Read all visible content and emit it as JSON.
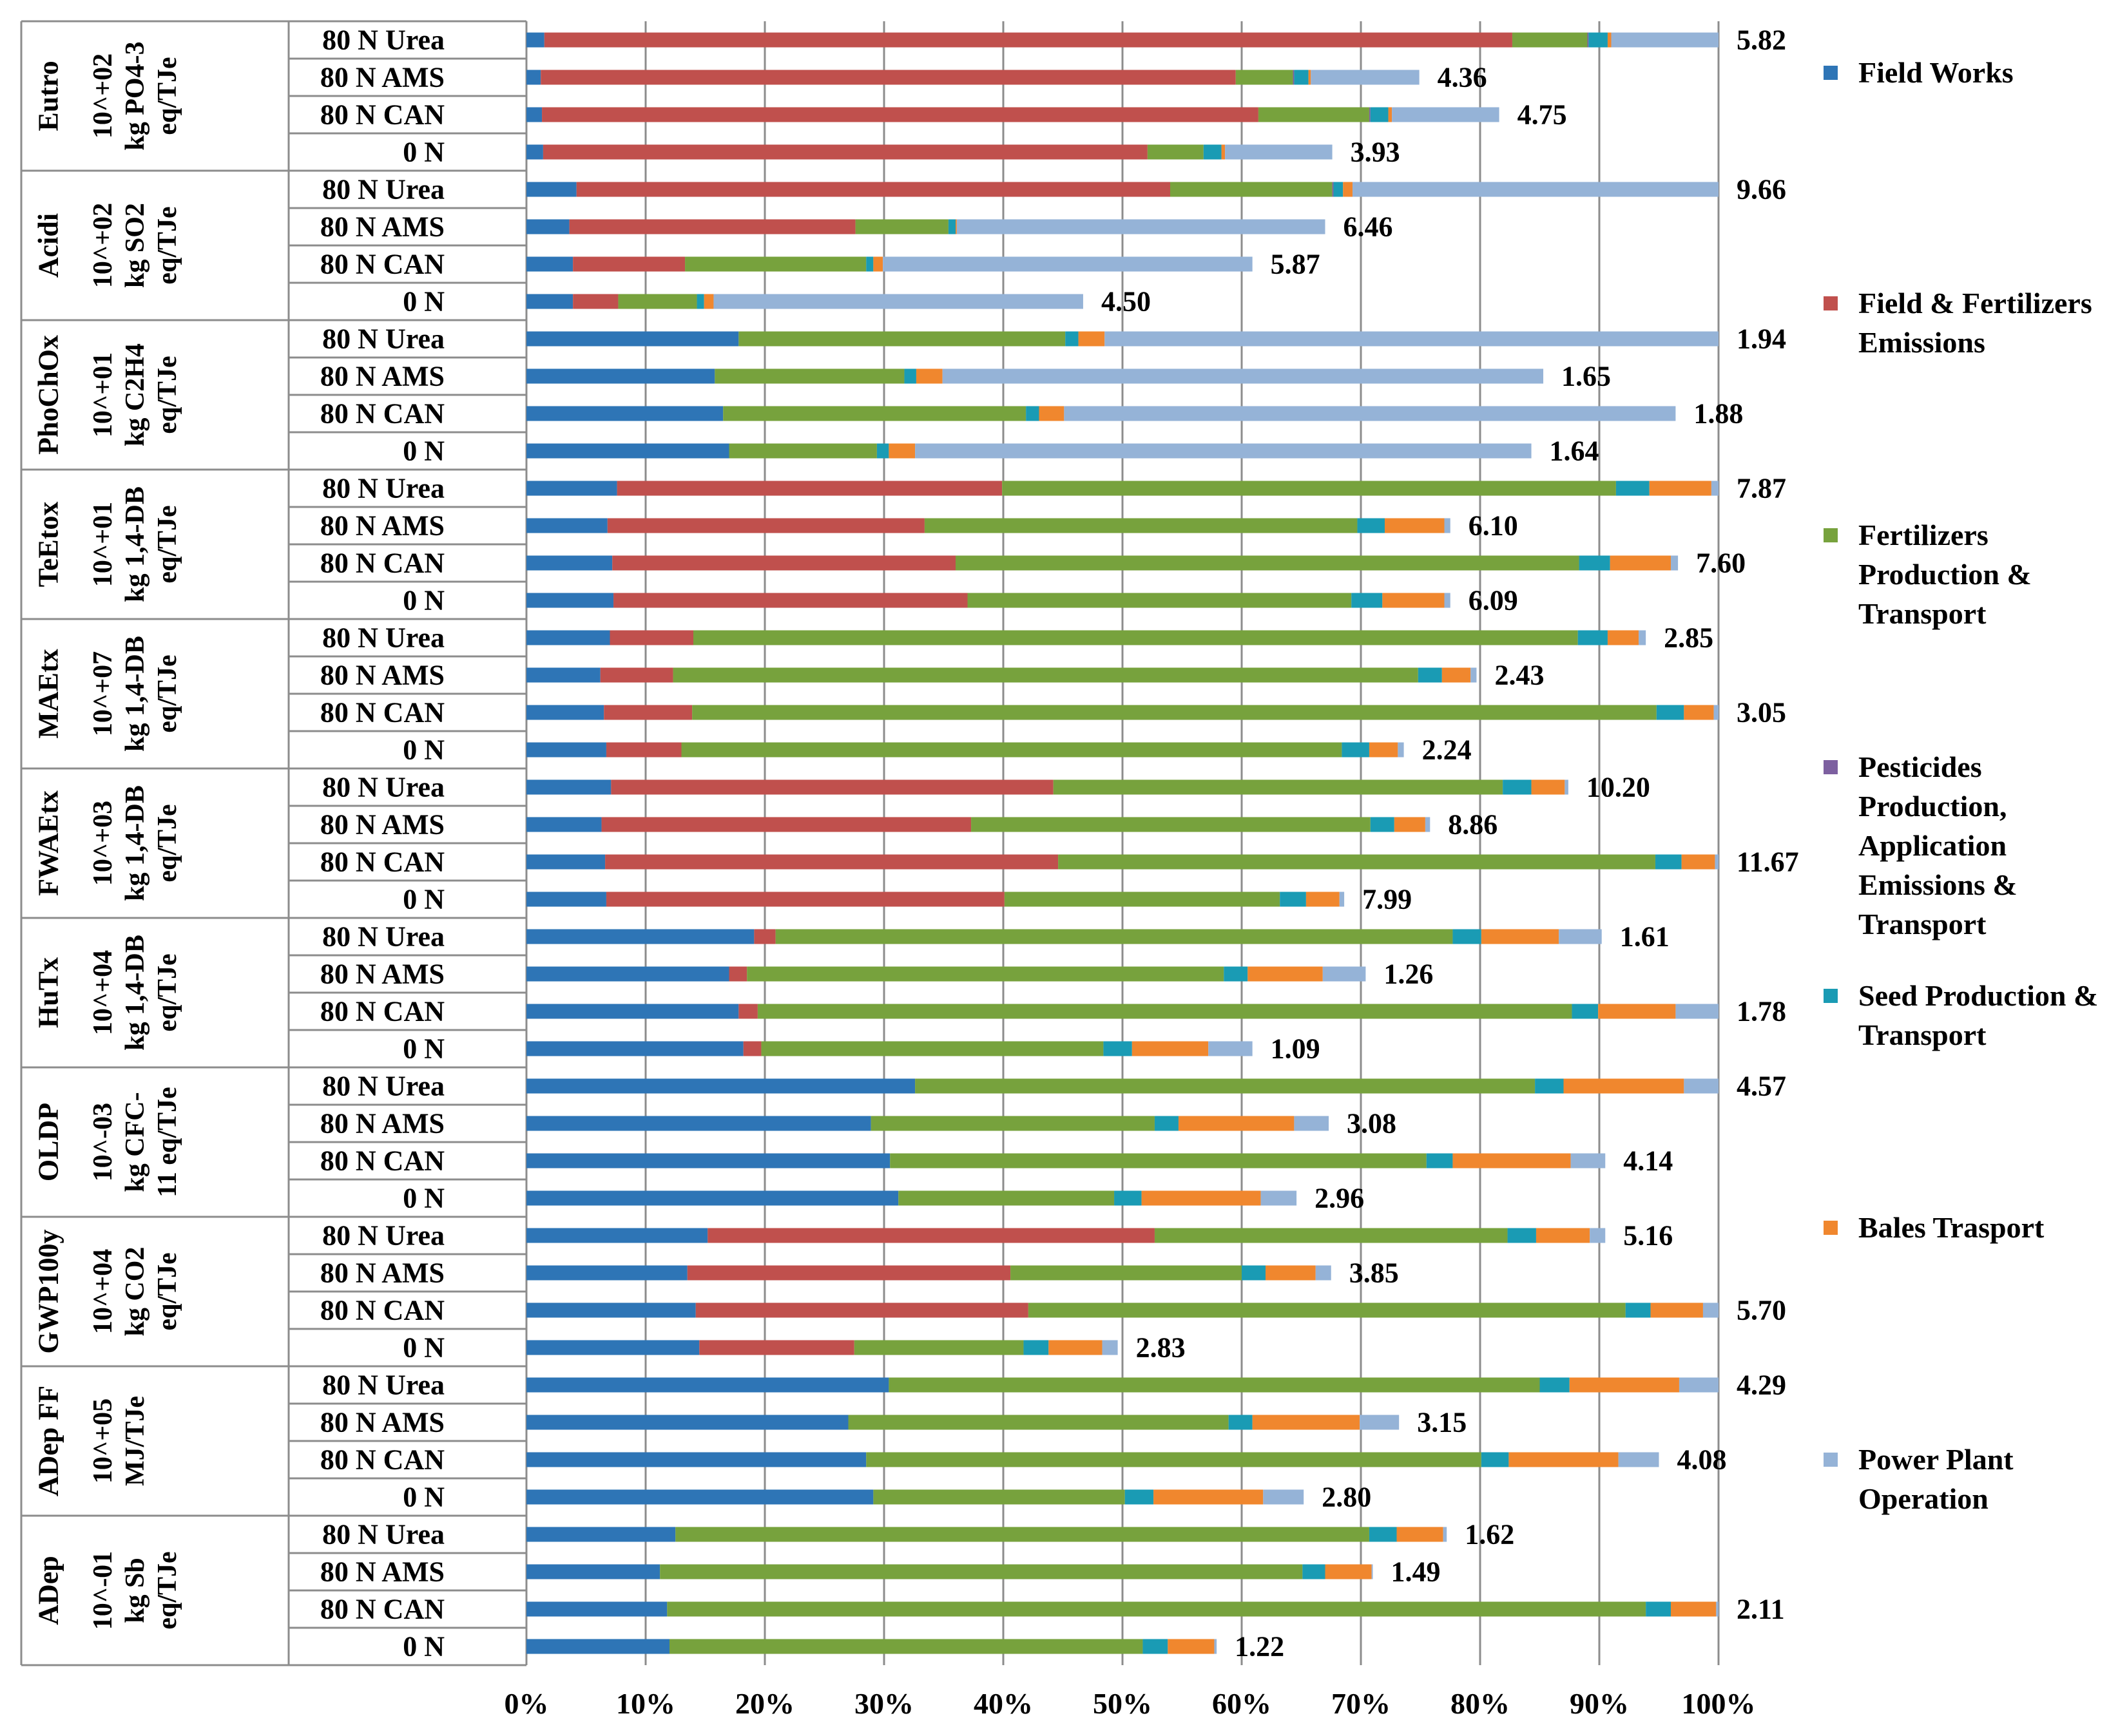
{
  "chart_data": {
    "type": "bar",
    "orientation": "horizontal",
    "stacked": true,
    "title": "",
    "xlabel": "",
    "ylabel": "",
    "xlim": [
      0,
      100
    ],
    "x_tick_labels": [
      "0%",
      "10%",
      "20%",
      "30%",
      "40%",
      "50%",
      "60%",
      "70%",
      "80%",
      "90%",
      "100%"
    ],
    "grid": "vertical",
    "legend_position": "right",
    "series": [
      {
        "name": "Field Works",
        "color": "#2e75b6"
      },
      {
        "name": "Field & Fertilizers Emissions",
        "color": "#c0504d"
      },
      {
        "name": "Fertilizers Production & Transport",
        "color": "#77a23d"
      },
      {
        "name": "Pesticides Production, Application Emissions & Transport",
        "color": "#7d60a0"
      },
      {
        "name": "Seed Production & Transport",
        "color": "#1a9bb4"
      },
      {
        "name": "Bales Trasport",
        "color": "#f0872e"
      },
      {
        "name": "Power Plant Operation",
        "color": "#95b3d7"
      }
    ],
    "groups": [
      {
        "category": "Eutro",
        "unit_lines": [
          "10^+02",
          "kg PO4-3",
          "eq/TJe"
        ],
        "bars": [
          {
            "label": "80 N  Urea",
            "total": "5.82",
            "values": [
              1.5,
              81.2,
              6.3,
              0.1,
              1.6,
              0.3,
              9.0
            ]
          },
          {
            "label": "80 N  AMS",
            "total": "4.36",
            "values": [
              1.2,
              58.3,
              4.8,
              0.1,
              1.2,
              0.2,
              9.1
            ]
          },
          {
            "label": "80 N  CAN",
            "total": "4.75",
            "values": [
              1.3,
              60.1,
              9.3,
              0.1,
              1.5,
              0.3,
              9.0
            ]
          },
          {
            "label": "0 N",
            "total": "3.93",
            "values": [
              1.4,
              50.7,
              4.7,
              0.0,
              1.5,
              0.3,
              9.0
            ]
          }
        ]
      },
      {
        "category": "Acidi",
        "unit_lines": [
          "10^+02",
          "kg SO2",
          "eq/TJe"
        ],
        "bars": [
          {
            "label": "80 N  Urea",
            "total": "9.66",
            "values": [
              4.2,
              49.8,
              13.6,
              0.1,
              0.8,
              0.8,
              30.7
            ]
          },
          {
            "label": "80 N  AMS",
            "total": "6.46",
            "values": [
              3.6,
              24.0,
              7.8,
              0.0,
              0.6,
              0.1,
              30.9
            ]
          },
          {
            "label": "80 N  CAN",
            "total": "5.87",
            "values": [
              3.9,
              9.4,
              15.2,
              0.0,
              0.6,
              0.8,
              31.0
            ]
          },
          {
            "label": "0 N",
            "total": "4.50",
            "values": [
              3.9,
              3.8,
              6.6,
              0.0,
              0.6,
              0.8,
              31.0
            ]
          }
        ]
      },
      {
        "category": "PhoChOx",
        "unit_lines": [
          "10^+01",
          "kg C2H4",
          "eq/TJe"
        ],
        "bars": [
          {
            "label": "80 N  Urea",
            "total": "1.94",
            "values": [
              17.8,
              0.0,
              27.4,
              0.0,
              1.1,
              2.2,
              51.5
            ]
          },
          {
            "label": "80 N  AMS",
            "total": "1.65",
            "values": [
              15.8,
              0.0,
              15.9,
              0.0,
              1.0,
              2.2,
              50.4
            ]
          },
          {
            "label": "80 N  CAN",
            "total": "1.88",
            "values": [
              16.5,
              0.0,
              25.4,
              0.0,
              1.1,
              2.1,
              51.3
            ]
          },
          {
            "label": "0 N",
            "total": "1.64",
            "values": [
              17.0,
              0.0,
              12.4,
              0.0,
              1.0,
              2.2,
              51.7
            ]
          }
        ]
      },
      {
        "category": "TeEtox",
        "unit_lines": [
          "10^+01",
          "kg 1,4-DB",
          "eq/TJe"
        ],
        "bars": [
          {
            "label": "80 N  Urea",
            "total": "7.87",
            "values": [
              7.6,
              32.3,
              51.5,
              0.0,
              2.8,
              5.2,
              0.6
            ]
          },
          {
            "label": "80 N  AMS",
            "total": "6.10",
            "values": [
              6.8,
              26.6,
              36.3,
              0.0,
              2.3,
              5.0,
              0.5
            ]
          },
          {
            "label": "80 N  CAN",
            "total": "7.60",
            "values": [
              7.2,
              28.8,
              52.3,
              0.0,
              2.6,
              5.1,
              0.6
            ]
          },
          {
            "label": "0 N",
            "total": "6.09",
            "values": [
              7.3,
              29.7,
              32.2,
              0.0,
              2.6,
              5.2,
              0.5
            ]
          }
        ]
      },
      {
        "category": "MAEtx",
        "unit_lines": [
          "10^+07",
          "kg 1,4-DB",
          "eq/TJe"
        ],
        "bars": [
          {
            "label": "80 N  Urea",
            "total": "2.85",
            "values": [
              7.0,
              7.0,
              74.2,
              0.0,
              2.5,
              2.6,
              0.6
            ]
          },
          {
            "label": "80 N  AMS",
            "total": "2.43",
            "values": [
              6.2,
              6.1,
              62.5,
              0.0,
              2.0,
              2.4,
              0.5
            ]
          },
          {
            "label": "80 N  CAN",
            "total": "3.05",
            "values": [
              6.5,
              7.4,
              80.9,
              0.0,
              2.3,
              2.5,
              0.4
            ]
          },
          {
            "label": "0 N",
            "total": "2.24",
            "values": [
              6.7,
              6.3,
              55.4,
              0.0,
              2.3,
              2.4,
              0.5
            ]
          }
        ]
      },
      {
        "category": "FWAEtx",
        "unit_lines": [
          "10^+03",
          "kg 1,4-DB",
          "eq/TJe"
        ],
        "bars": [
          {
            "label": "80 N  Urea",
            "total": "10.20",
            "values": [
              7.1,
              37.1,
              37.7,
              0.0,
              2.4,
              2.8,
              0.3
            ]
          },
          {
            "label": "80 N  AMS",
            "total": "8.86",
            "values": [
              6.3,
              31.0,
              33.5,
              0.0,
              2.0,
              2.6,
              0.4
            ]
          },
          {
            "label": "80 N  CAN",
            "total": "11.67",
            "values": [
              6.6,
              38.0,
              50.1,
              0.0,
              2.2,
              2.8,
              0.3
            ]
          },
          {
            "label": "0 N",
            "total": "7.99",
            "values": [
              6.7,
              33.4,
              23.1,
              0.0,
              2.2,
              2.8,
              0.4
            ]
          }
        ]
      },
      {
        "category": "HuTx",
        "unit_lines": [
          "10^+04",
          "kg 1,4-DB",
          "eq/TJe"
        ],
        "bars": [
          {
            "label": "80 N  Urea",
            "total": "1.61",
            "values": [
              19.1,
              1.8,
              56.8,
              0.0,
              2.4,
              6.5,
              3.6
            ]
          },
          {
            "label": "80 N  AMS",
            "total": "1.26",
            "values": [
              17.0,
              1.5,
              40.0,
              0.0,
              2.0,
              6.3,
              3.6
            ]
          },
          {
            "label": "80 N  CAN",
            "total": "1.78",
            "values": [
              17.8,
              1.6,
              68.3,
              0.0,
              2.2,
              6.5,
              3.6
            ]
          },
          {
            "label": "0 N",
            "total": "1.09",
            "values": [
              18.2,
              1.5,
              28.7,
              0.0,
              2.4,
              6.4,
              3.7
            ]
          }
        ]
      },
      {
        "category": "OLDP",
        "unit_lines": [
          "10^-03",
          "kg CFC-",
          "11 eq/TJe"
        ],
        "bars": [
          {
            "label": "80 N  Urea",
            "total": "4.57",
            "values": [
              32.6,
              0.0,
              52.0,
              0.0,
              2.4,
              10.1,
              2.9
            ]
          },
          {
            "label": "80 N  AMS",
            "total": "3.08",
            "values": [
              28.9,
              0.0,
              23.8,
              0.0,
              2.0,
              9.7,
              2.9
            ]
          },
          {
            "label": "80 N  CAN",
            "total": "4.14",
            "values": [
              30.5,
              0.0,
              45.0,
              0.0,
              2.2,
              9.9,
              2.9
            ]
          },
          {
            "label": "0 N",
            "total": "2.96",
            "values": [
              31.2,
              0.0,
              18.1,
              0.0,
              2.3,
              10.0,
              3.0
            ]
          }
        ]
      },
      {
        "category": "GWP100y",
        "unit_lines": [
          "10^+04",
          "kg CO2",
          "eq/TJe"
        ],
        "bars": [
          {
            "label": "80 N  Urea",
            "total": "5.16",
            "values": [
              15.2,
              37.5,
              29.6,
              0.0,
              2.4,
              4.5,
              1.3
            ]
          },
          {
            "label": "80 N  AMS",
            "total": "3.85",
            "values": [
              13.5,
              27.1,
              19.4,
              0.0,
              2.0,
              4.2,
              1.3
            ]
          },
          {
            "label": "80 N  CAN",
            "total": "5.70",
            "values": [
              14.2,
              27.9,
              50.1,
              0.0,
              2.1,
              4.4,
              1.3
            ]
          },
          {
            "label": "0 N",
            "total": "2.83",
            "values": [
              14.5,
              13.0,
              14.2,
              0.0,
              2.1,
              4.5,
              1.3
            ]
          }
        ]
      },
      {
        "category": "ADep FF",
        "unit_lines": [
          "10^+05",
          "MJ/TJe"
        ],
        "bars": [
          {
            "label": "80 N  Urea",
            "total": "4.29",
            "values": [
              30.4,
              0.0,
              54.6,
              0.0,
              2.5,
              9.2,
              3.3
            ]
          },
          {
            "label": "80 N  AMS",
            "total": "3.15",
            "values": [
              27.0,
              0.0,
              31.9,
              0.0,
              2.0,
              9.0,
              3.3
            ]
          },
          {
            "label": "80 N  CAN",
            "total": "4.08",
            "values": [
              28.5,
              0.0,
              51.6,
              0.0,
              2.3,
              9.2,
              3.4
            ]
          },
          {
            "label": "0 N",
            "total": "2.80",
            "values": [
              29.1,
              0.0,
              21.1,
              0.0,
              2.4,
              9.2,
              3.4
            ]
          }
        ]
      },
      {
        "category": "ADep",
        "unit_lines": [
          "10^-01",
          "kg Sb",
          "eq/TJe"
        ],
        "bars": [
          {
            "label": "80 N  Urea",
            "total": "1.62",
            "values": [
              12.5,
              0.0,
              58.2,
              0.0,
              2.3,
              3.9,
              0.3
            ]
          },
          {
            "label": "80 N  AMS",
            "total": "1.49",
            "values": [
              11.2,
              0.0,
              53.9,
              0.0,
              1.9,
              3.9,
              0.1
            ]
          },
          {
            "label": "80 N  CAN",
            "total": "2.11",
            "values": [
              11.8,
              0.0,
              82.1,
              0.0,
              2.1,
              3.8,
              0.2
            ]
          },
          {
            "label": "0 N",
            "total": "1.22",
            "values": [
              12.0,
              0.0,
              39.7,
              0.0,
              2.1,
              3.9,
              0.2
            ]
          }
        ]
      }
    ]
  }
}
